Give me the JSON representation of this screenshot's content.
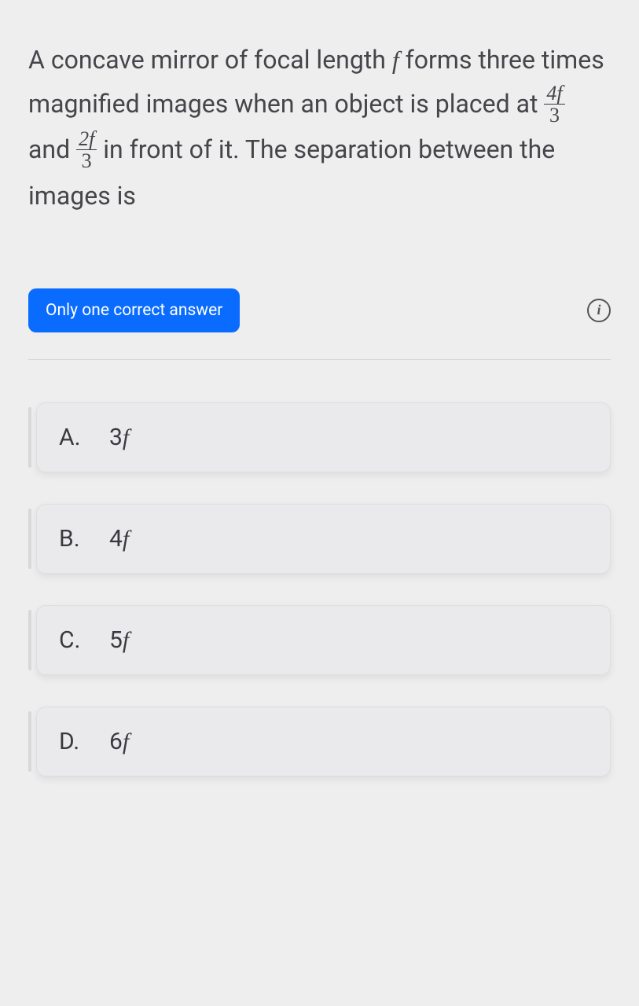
{
  "question": {
    "text_parts": {
      "p1": "A concave mirror of focal length ",
      "var_f": "f",
      "p2": " forms three times magnified images when an object is placed at ",
      "frac1_num": "4f",
      "frac1_den": "3",
      "p3": " and ",
      "frac2_num": "2f",
      "frac2_den": "3",
      "p4": " in front of it. The separation between the images is"
    }
  },
  "badge": {
    "label": "Only one correct answer"
  },
  "info_icon_glyph": "i",
  "options": [
    {
      "letter": "A.",
      "value_coeff": "3",
      "value_var": "f"
    },
    {
      "letter": "B.",
      "value_coeff": "4",
      "value_var": "f"
    },
    {
      "letter": "C.",
      "value_coeff": "5",
      "value_var": "f"
    },
    {
      "letter": "D.",
      "value_coeff": "6",
      "value_var": "f"
    }
  ],
  "colors": {
    "background": "#eeeeef",
    "text": "#3a3a3e",
    "pill_bg": "#0a6cff",
    "pill_text": "#ffffff",
    "option_bg": "#eaeaec",
    "option_border": "#dedee0",
    "divider": "#d6d6d8",
    "option_bar": "#d8d8da"
  }
}
